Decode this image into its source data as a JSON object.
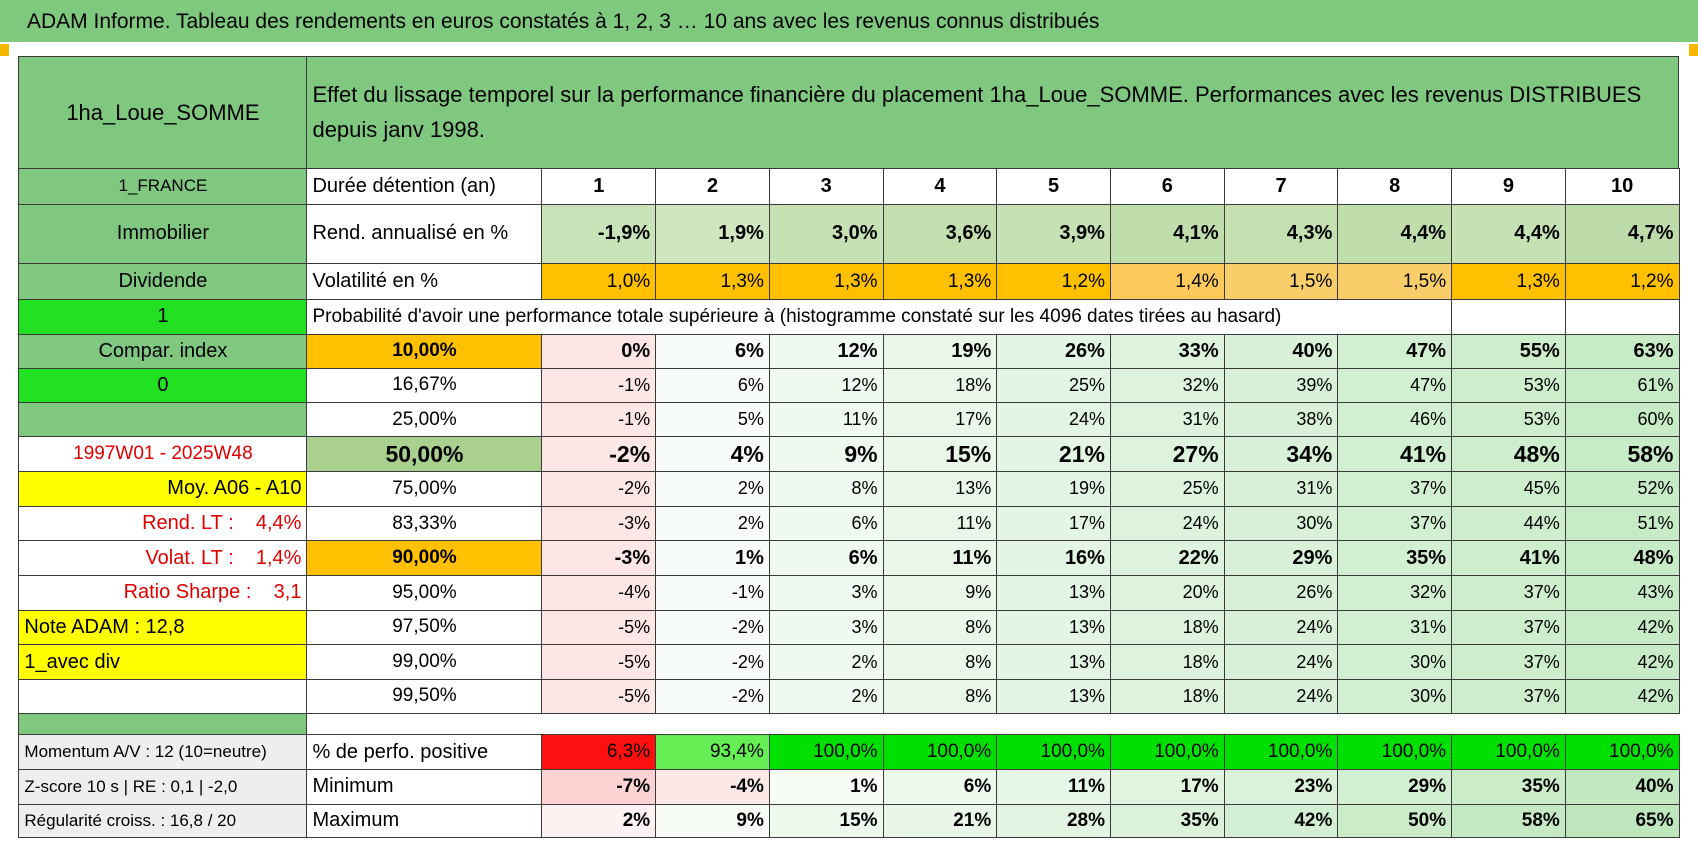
{
  "header": {
    "title": "ADAM Informe. Tableau des rendements en euros constatés à 1, 2, 3 … 10 ans avec les revenus connus distribués"
  },
  "table": {
    "rows": [
      {
        "label": "1ha_Loue_SOMME",
        "cells": [
          "Effet du lissage temporel sur la performance financière du placement 1ha_Loue_SOMME. Performances avec les revenus DISTRIBUES depuis janv 1998."
        ]
      },
      {
        "label": "1_FRANCE",
        "cells": [
          "Durée détention (an)",
          "1",
          "2",
          "3",
          "4",
          "5",
          "6",
          "7",
          "8",
          "9",
          "10"
        ]
      },
      {
        "label": "Immobilier",
        "cells": [
          "Rend. annualisé en %",
          "-1,9%",
          "1,9%",
          "3,0%",
          "3,6%",
          "3,9%",
          "4,1%",
          "4,3%",
          "4,4%",
          "4,4%",
          "4,7%"
        ]
      },
      {
        "label": "Dividende",
        "cells": [
          "Volatilité en %",
          "1,0%",
          "1,3%",
          "1,3%",
          "1,3%",
          "1,2%",
          "1,4%",
          "1,5%",
          "1,5%",
          "1,3%",
          "1,2%"
        ]
      },
      {
        "label": "1",
        "cells": [
          "Probabilité d'avoir une performance totale supérieure à (histogramme constaté sur les 4096 dates tirées au hasard)"
        ]
      },
      {
        "label": "Compar. index",
        "cells": [
          "10,00%",
          "0%",
          "6%",
          "12%",
          "19%",
          "26%",
          "33%",
          "40%",
          "47%",
          "55%",
          "63%"
        ]
      },
      {
        "label": "0",
        "cells": [
          "16,67%",
          "-1%",
          "6%",
          "12%",
          "18%",
          "25%",
          "32%",
          "39%",
          "47%",
          "53%",
          "61%"
        ]
      },
      {
        "cells": [
          "25,00%",
          "-1%",
          "5%",
          "11%",
          "17%",
          "24%",
          "31%",
          "38%",
          "46%",
          "53%",
          "60%"
        ]
      },
      {
        "label": "1997W01 - 2025W48",
        "cells": [
          "50,00%",
          "-2%",
          "4%",
          "9%",
          "15%",
          "21%",
          "27%",
          "34%",
          "41%",
          "48%",
          "58%"
        ]
      },
      {
        "label": "Moy. A06 - A10",
        "cells": [
          "75,00%",
          "-2%",
          "2%",
          "8%",
          "13%",
          "19%",
          "25%",
          "31%",
          "37%",
          "45%",
          "52%"
        ]
      },
      {
        "label": "Rend. LT :    4,4%",
        "cells": [
          "83,33%",
          "-3%",
          "2%",
          "6%",
          "11%",
          "17%",
          "24%",
          "30%",
          "37%",
          "44%",
          "51%"
        ]
      },
      {
        "label": "Volat. LT :    1,4%",
        "cells": [
          "90,00%",
          "-3%",
          "1%",
          "6%",
          "11%",
          "16%",
          "22%",
          "29%",
          "35%",
          "41%",
          "48%"
        ]
      },
      {
        "label": "Ratio Sharpe :    3,1",
        "cells": [
          "95,00%",
          "-4%",
          "-1%",
          "3%",
          "9%",
          "13%",
          "20%",
          "26%",
          "32%",
          "37%",
          "43%"
        ]
      },
      {
        "label": "Note ADAM : 12,8",
        "cells": [
          "97,50%",
          "-5%",
          "-2%",
          "3%",
          "8%",
          "13%",
          "18%",
          "24%",
          "31%",
          "37%",
          "42%"
        ]
      },
      {
        "label": "1_avec div",
        "cells": [
          "99,00%",
          "-5%",
          "-2%",
          "2%",
          "8%",
          "13%",
          "18%",
          "24%",
          "30%",
          "37%",
          "42%"
        ]
      },
      {
        "cells": [
          "99,50%",
          "-5%",
          "-2%",
          "2%",
          "8%",
          "13%",
          "18%",
          "24%",
          "30%",
          "37%",
          "42%"
        ]
      }
    ]
  },
  "summary": {
    "rows": [
      {
        "label": "Momentum A/V : 12 (10=neutre)",
        "cells": [
          "% de perfo. positive",
          "6,3%",
          "93,4%",
          "100,0%",
          "100,0%",
          "100,0%",
          "100,0%",
          "100,0%",
          "100,0%",
          "100,0%",
          "100,0%"
        ]
      },
      {
        "label": "Z-score 10 s | RE : 0,1 | -2,0",
        "cells": [
          "Minimum",
          "-7%",
          "-4%",
          "1%",
          "6%",
          "11%",
          "17%",
          "23%",
          "29%",
          "35%",
          "40%"
        ]
      },
      {
        "label": "Régularité croiss. : 16,8 / 20",
        "cells": [
          "Maximum",
          "2%",
          "9%",
          "15%",
          "21%",
          "28%",
          "35%",
          "42%",
          "50%",
          "58%",
          "65%"
        ]
      }
    ]
  }
}
